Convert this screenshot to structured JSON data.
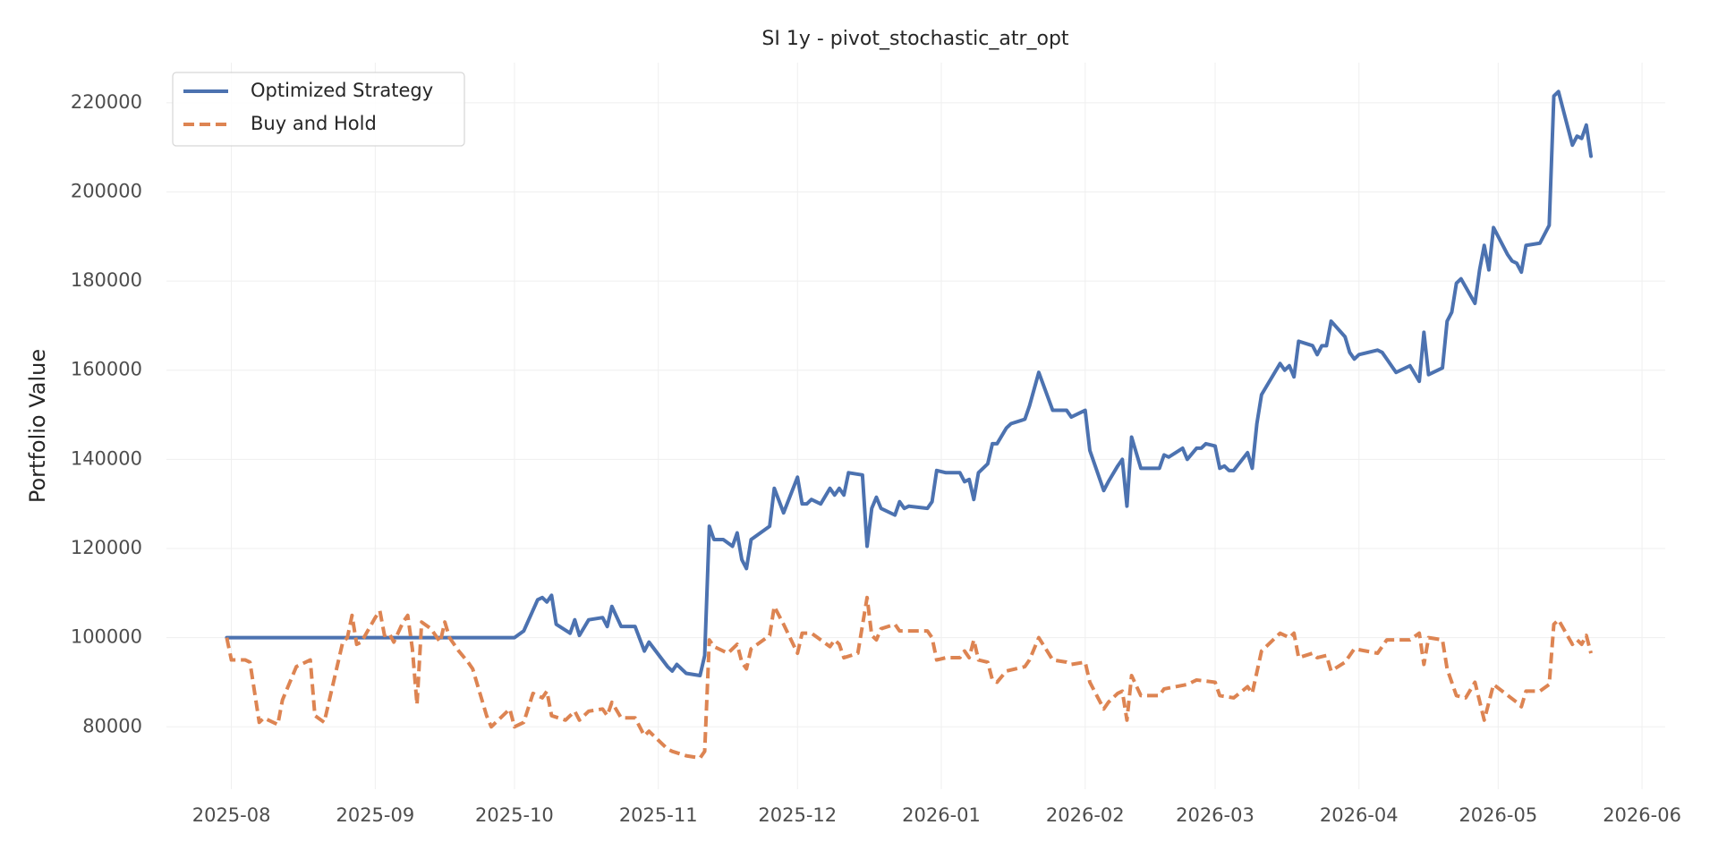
{
  "chart_data": {
    "type": "line",
    "title": "SI 1y - pivot_stochastic_atr_opt",
    "y_label": "Portfolio Value",
    "xlim": [
      -14,
      309
    ],
    "xticks": [
      {
        "value": 0,
        "label": "2025-08"
      },
      {
        "value": 31,
        "label": "2025-09"
      },
      {
        "value": 61,
        "label": "2025-10"
      },
      {
        "value": 92,
        "label": "2025-11"
      },
      {
        "value": 122,
        "label": "2025-12"
      },
      {
        "value": 153,
        "label": "2026-01"
      },
      {
        "value": 184,
        "label": "2026-02"
      },
      {
        "value": 212,
        "label": "2026-03"
      },
      {
        "value": 243,
        "label": "2026-04"
      },
      {
        "value": 273,
        "label": "2026-05"
      },
      {
        "value": 304,
        "label": "2026-06"
      }
    ],
    "ylim": [
      66000,
      229000
    ],
    "yticks": [
      80000,
      100000,
      120000,
      140000,
      160000,
      180000,
      200000,
      220000
    ],
    "grid": true,
    "legend": "upper left",
    "series": [
      {
        "name": "Optimized Strategy",
        "color": "#4c72b0",
        "linestyle": "solid",
        "x": [
          -1,
          61,
          63,
          66,
          67,
          68,
          69,
          70,
          73,
          74,
          75,
          77,
          80,
          81,
          82,
          84,
          87,
          89,
          90,
          94,
          95,
          96,
          98,
          101,
          102,
          103,
          104,
          106,
          108,
          109,
          110,
          111,
          112,
          116,
          117,
          119,
          122,
          123,
          124,
          125,
          127,
          129,
          130,
          131,
          132,
          133,
          136,
          137,
          138,
          139,
          140,
          143,
          144,
          145,
          146,
          150,
          151,
          152,
          154,
          157,
          158,
          159,
          160,
          161,
          163,
          164,
          165,
          167,
          168,
          171,
          172,
          174,
          177,
          180,
          181,
          184,
          185,
          188,
          189,
          191,
          192,
          193,
          194,
          196,
          200,
          201,
          202,
          205,
          206,
          208,
          209,
          210,
          212,
          213,
          214,
          215,
          216,
          219,
          220,
          221,
          222,
          226,
          227,
          228,
          229,
          230,
          233,
          234,
          235,
          236,
          237,
          240,
          241,
          242,
          243,
          247,
          248,
          249,
          251,
          254,
          256,
          257,
          258,
          261,
          262,
          263,
          264,
          265,
          268,
          269,
          270,
          271,
          272,
          275,
          276,
          277,
          278,
          279,
          282,
          284,
          285,
          286,
          289,
          290,
          291,
          292,
          293
        ],
        "values": [
          100000,
          100000,
          101500,
          108500,
          109000,
          108000,
          109500,
          103000,
          101000,
          104000,
          100500,
          104000,
          104500,
          102500,
          107000,
          102500,
          102500,
          97000,
          99000,
          93500,
          92500,
          94000,
          92000,
          91500,
          96000,
          125000,
          122000,
          122000,
          120500,
          123500,
          117500,
          115500,
          122000,
          125000,
          133500,
          128000,
          136000,
          130000,
          130000,
          131000,
          130000,
          133500,
          132000,
          133500,
          132000,
          137000,
          136500,
          120500,
          129000,
          131500,
          129000,
          127500,
          130500,
          129000,
          129500,
          129000,
          130500,
          137500,
          137000,
          137000,
          135000,
          135500,
          131000,
          137000,
          139000,
          143500,
          143500,
          147000,
          148000,
          149000,
          152000,
          159500,
          151000,
          151000,
          149500,
          151000,
          142000,
          133000,
          135000,
          138500,
          140000,
          129500,
          145000,
          138000,
          138000,
          141000,
          140500,
          142500,
          140000,
          142500,
          142500,
          143500,
          143000,
          138000,
          138500,
          137500,
          137500,
          141500,
          138000,
          148000,
          154500,
          161500,
          160000,
          161000,
          158500,
          166500,
          165500,
          163500,
          165500,
          165500,
          171000,
          167500,
          164000,
          162500,
          163500,
          164500,
          164000,
          162500,
          159500,
          161000,
          157500,
          168500,
          159000,
          160500,
          171000,
          173000,
          179500,
          180500,
          175000,
          182500,
          188000,
          182500,
          192000,
          186000,
          184500,
          184000,
          182000,
          188000,
          188500,
          192500,
          221500,
          222500,
          210500,
          212500,
          212000,
          215000,
          208000
        ]
      },
      {
        "name": "Buy and Hold",
        "color": "#dd8452",
        "linestyle": "dashed",
        "x": [
          -1,
          0,
          3,
          4,
          6,
          7,
          10,
          11,
          14,
          16,
          17,
          18,
          20,
          24,
          25,
          26,
          27,
          28,
          31,
          32,
          33,
          34,
          35,
          37,
          38,
          39,
          40,
          41,
          43,
          45,
          46,
          47,
          49,
          51,
          52,
          55,
          56,
          60,
          61,
          63,
          65,
          67,
          68,
          69,
          72,
          74,
          75,
          77,
          80,
          81,
          82,
          84,
          87,
          89,
          90,
          94,
          95,
          98,
          101,
          102,
          103,
          104,
          107,
          108,
          109,
          110,
          111,
          112,
          116,
          117,
          119,
          122,
          123,
          125,
          129,
          130,
          131,
          132,
          135,
          137,
          138,
          139,
          140,
          143,
          144,
          148,
          150,
          151,
          152,
          154,
          157,
          158,
          159,
          160,
          161,
          163,
          164,
          165,
          167,
          171,
          172,
          174,
          177,
          180,
          181,
          184,
          185,
          188,
          189,
          191,
          192,
          193,
          194,
          196,
          200,
          201,
          206,
          208,
          212,
          213,
          216,
          219,
          220,
          222,
          226,
          228,
          229,
          230,
          233,
          234,
          236,
          237,
          240,
          242,
          247,
          249,
          254,
          256,
          257,
          258,
          261,
          262,
          264,
          266,
          268,
          270,
          272,
          277,
          278,
          279,
          282,
          284,
          285,
          286,
          289,
          290,
          291,
          292,
          293
        ],
        "values": [
          100000,
          95000,
          95000,
          94500,
          81000,
          82000,
          80500,
          86000,
          93500,
          94500,
          95000,
          82500,
          81000,
          99000,
          100000,
          105000,
          98500,
          99000,
          104500,
          106000,
          100500,
          101000,
          99000,
          103500,
          105000,
          97500,
          85000,
          103500,
          102000,
          99000,
          103500,
          100000,
          97000,
          94500,
          93000,
          82500,
          80000,
          84000,
          80000,
          81000,
          87500,
          86500,
          88000,
          82500,
          81500,
          83500,
          81500,
          83500,
          84000,
          82500,
          85500,
          82000,
          82000,
          78000,
          79000,
          75000,
          74500,
          73500,
          73000,
          74500,
          99500,
          98000,
          96500,
          97500,
          98500,
          94500,
          93000,
          97500,
          100500,
          107000,
          103000,
          96500,
          101000,
          101000,
          98000,
          99500,
          98500,
          95500,
          96500,
          109000,
          100500,
          99500,
          102000,
          103000,
          101500,
          101500,
          101500,
          100000,
          95000,
          95500,
          95500,
          97000,
          95500,
          99500,
          95000,
          94500,
          90500,
          90000,
          92500,
          93500,
          95000,
          100000,
          95000,
          94500,
          94000,
          94500,
          90000,
          84000,
          85500,
          87500,
          88000,
          81500,
          91500,
          87000,
          87000,
          88500,
          89500,
          90500,
          90000,
          87000,
          86500,
          89000,
          87500,
          97000,
          101000,
          100000,
          101000,
          95500,
          96500,
          95500,
          96000,
          92500,
          94500,
          97500,
          96500,
          99500,
          99500,
          101000,
          94000,
          100000,
          99500,
          93000,
          87000,
          86500,
          90000,
          81500,
          89500,
          85500,
          84500,
          88000,
          88000,
          89500,
          103000,
          104000,
          98500,
          99500,
          98500,
          100500,
          96500
        ]
      }
    ]
  }
}
